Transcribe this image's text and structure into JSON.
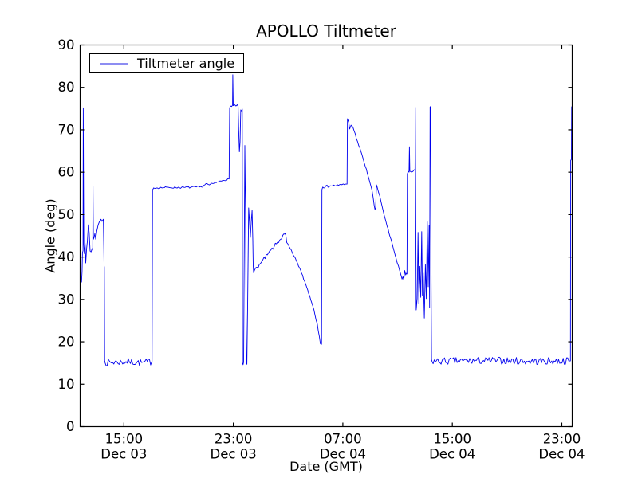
{
  "figure": {
    "background": "#ffffff",
    "axes_color": "#000000"
  },
  "chart_data": {
    "type": "line",
    "title": "APOLLO Tiltmeter",
    "xlabel": "Date (GMT)",
    "ylabel": "Angle (deg)",
    "ylim": [
      0,
      90
    ],
    "xlim_hours": [
      0,
      36
    ],
    "grid": false,
    "tick_direction": "in",
    "yticks": [
      0,
      10,
      20,
      30,
      40,
      50,
      60,
      70,
      80,
      90
    ],
    "xticks": [
      {
        "t": 3.2,
        "time": "15:00",
        "date": "Dec 03"
      },
      {
        "t": 11.21,
        "time": "23:00",
        "date": "Dec 03"
      },
      {
        "t": 19.22,
        "time": "07:00",
        "date": "Dec 04"
      },
      {
        "t": 27.23,
        "time": "15:00",
        "date": "Dec 04"
      },
      {
        "t": 35.24,
        "time": "23:00",
        "date": "Dec 04"
      }
    ],
    "legend": {
      "position": "upper left",
      "entries": [
        {
          "label": "Tiltmeter angle",
          "color": "#0000ee",
          "sample_color": "#8d8df2"
        }
      ]
    },
    "series": [
      {
        "name": "Tiltmeter angle",
        "color": "#0000ee",
        "line_width": 0.9,
        "points_per_hour": 12,
        "segments": [
          {
            "amp": 0.3,
            "pts": [
              [
                0.1,
                34.0
              ],
              [
                0.14,
                36.5
              ],
              [
                0.17,
                41.0
              ],
              [
                0.21,
                41.5
              ],
              [
                0.23,
                75.2
              ],
              [
                0.25,
                55.0
              ],
              [
                0.27,
                43.0
              ],
              [
                0.31,
                40.8
              ],
              [
                0.36,
                43.2
              ],
              [
                0.41,
                38.6
              ],
              [
                0.47,
                42.0
              ],
              [
                0.53,
                43.8
              ],
              [
                0.6,
                47.6
              ],
              [
                0.66,
                45.8
              ],
              [
                0.73,
                41.4
              ],
              [
                0.8,
                41.2
              ],
              [
                0.88,
                42.0
              ],
              [
                0.92,
                41.8
              ],
              [
                0.94,
                56.8
              ],
              [
                0.97,
                44.2
              ],
              [
                1.02,
                44.6
              ],
              [
                1.08,
                45.6
              ],
              [
                1.14,
                44.2
              ],
              [
                1.22,
                46.1
              ],
              [
                1.32,
                47.6
              ],
              [
                1.42,
                48.4
              ],
              [
                1.52,
                48.9
              ],
              [
                1.6,
                48.4
              ],
              [
                1.7,
                48.9
              ],
              [
                1.73,
                42.0
              ],
              [
                1.75,
                38.0
              ],
              [
                1.77,
                37.6
              ],
              [
                1.79,
                15.6
              ]
            ]
          },
          {
            "amp": 0.8,
            "pts": [
              [
                1.82,
                15.1
              ],
              [
                2.7,
                15.2
              ],
              [
                3.6,
                15.3
              ],
              [
                4.5,
                15.1
              ],
              [
                5.24,
                15.3
              ]
            ]
          },
          {
            "amp": 0.22,
            "pts": [
              [
                5.26,
                15.4
              ],
              [
                5.3,
                55.8
              ],
              [
                5.38,
                56.3
              ],
              [
                6.5,
                56.4
              ],
              [
                7.6,
                56.4
              ],
              [
                8.9,
                56.5
              ],
              [
                9.2,
                57.3
              ],
              [
                9.45,
                57.0
              ],
              [
                9.8,
                57.4
              ],
              [
                10.1,
                57.7
              ],
              [
                10.45,
                58.1
              ],
              [
                10.9,
                58.4
              ]
            ]
          },
          {
            "amp": 0.15,
            "pts": [
              [
                10.94,
                75.2
              ],
              [
                11.0,
                75.6
              ],
              [
                11.08,
                75.5
              ],
              [
                11.15,
                75.8
              ],
              [
                11.17,
                83.0
              ],
              [
                11.2,
                75.7
              ],
              [
                11.3,
                75.9
              ],
              [
                11.4,
                75.6
              ],
              [
                11.5,
                75.9
              ],
              [
                11.56,
                75.5
              ],
              [
                11.6,
                70.0
              ],
              [
                11.65,
                64.8
              ],
              [
                11.7,
                67.0
              ],
              [
                11.75,
                74.7
              ],
              [
                11.82,
                74.4
              ],
              [
                11.86,
                74.9
              ],
              [
                11.88,
                15.0
              ],
              [
                11.92,
                14.6
              ],
              [
                11.96,
                15.2
              ],
              [
                12.05,
                66.3
              ],
              [
                12.1,
                50.0
              ],
              [
                12.16,
                15.0
              ],
              [
                12.2,
                14.7
              ],
              [
                12.26,
                30.0
              ],
              [
                12.33,
                51.6
              ],
              [
                12.4,
                48.0
              ],
              [
                12.45,
                44.6
              ],
              [
                12.52,
                48.5
              ],
              [
                12.58,
                51.0
              ],
              [
                12.63,
                44.0
              ],
              [
                12.66,
                38.0
              ],
              [
                12.69,
                36.3
              ]
            ]
          },
          {
            "amp": 0.45,
            "pts": [
              [
                12.75,
                36.8
              ],
              [
                13.2,
                38.5
              ],
              [
                13.7,
                40.5
              ],
              [
                14.2,
                42.5
              ],
              [
                14.6,
                44.0
              ],
              [
                14.98,
                45.4
              ]
            ]
          },
          {
            "amp": 0.25,
            "pts": [
              [
                15.02,
                45.6
              ],
              [
                15.06,
                44.9
              ],
              [
                15.12,
                43.4
              ],
              [
                15.3,
                42.4
              ],
              [
                15.6,
                40.4
              ],
              [
                15.9,
                38.6
              ],
              [
                16.2,
                36.2
              ],
              [
                16.5,
                33.6
              ],
              [
                16.8,
                30.8
              ],
              [
                17.1,
                27.6
              ],
              [
                17.35,
                24.2
              ],
              [
                17.5,
                21.3
              ],
              [
                17.58,
                19.5
              ],
              [
                17.63,
                19.7
              ],
              [
                17.66,
                19.4
              ]
            ]
          },
          {
            "amp": 0.28,
            "pts": [
              [
                17.69,
                55.9
              ],
              [
                17.75,
                56.5
              ],
              [
                18.3,
                56.8
              ],
              [
                18.9,
                56.9
              ],
              [
                19.5,
                57.2
              ]
            ]
          },
          {
            "amp": 0.22,
            "pts": [
              [
                19.53,
                57.2
              ],
              [
                19.56,
                72.6
              ],
              [
                19.65,
                71.8
              ],
              [
                19.72,
                70.2
              ],
              [
                19.82,
                71.1
              ],
              [
                19.95,
                70.7
              ],
              [
                20.3,
                67.2
              ],
              [
                20.7,
                63.2
              ],
              [
                21.1,
                58.8
              ],
              [
                21.35,
                55.8
              ],
              [
                21.52,
                52.0
              ],
              [
                21.57,
                51.2
              ],
              [
                21.62,
                51.6
              ],
              [
                21.68,
                57.0
              ],
              [
                21.74,
                56.4
              ],
              [
                22.0,
                53.2
              ],
              [
                22.3,
                49.2
              ],
              [
                22.6,
                45.6
              ],
              [
                22.9,
                42.2
              ],
              [
                23.2,
                38.6
              ],
              [
                23.45,
                36.0
              ],
              [
                23.55,
                34.8
              ],
              [
                23.62,
                35.4
              ],
              [
                23.68,
                34.6
              ],
              [
                23.75,
                36.8
              ],
              [
                23.82,
                35.8
              ],
              [
                23.88,
                36.2
              ]
            ]
          },
          {
            "amp": 0.2,
            "pts": [
              [
                23.91,
                36.0
              ],
              [
                23.94,
                59.6
              ],
              [
                24.0,
                60.2
              ],
              [
                24.06,
                60.0
              ],
              [
                24.09,
                66.0
              ],
              [
                24.12,
                60.2
              ],
              [
                24.25,
                60.0
              ],
              [
                24.35,
                60.2
              ],
              [
                24.44,
                60.6
              ],
              [
                24.5,
                60.4
              ],
              [
                24.52,
                75.3
              ],
              [
                24.56,
                48.0
              ],
              [
                24.59,
                27.5
              ],
              [
                24.66,
                30.2
              ],
              [
                24.72,
                45.8
              ],
              [
                24.78,
                29.0
              ],
              [
                24.85,
                37.8
              ],
              [
                24.92,
                30.5
              ],
              [
                24.99,
                46.0
              ],
              [
                25.04,
                31.0
              ],
              [
                25.1,
                36.2
              ],
              [
                25.18,
                25.6
              ],
              [
                25.26,
                38.2
              ],
              [
                25.33,
                30.2
              ],
              [
                25.4,
                48.3
              ],
              [
                25.47,
                33.0
              ],
              [
                25.53,
                47.4
              ],
              [
                25.57,
                28.0
              ],
              [
                25.6,
                75.4
              ],
              [
                25.64,
                75.5
              ],
              [
                25.68,
                34.0
              ],
              [
                25.71,
                15.8
              ]
            ]
          },
          {
            "amp": 0.85,
            "pts": [
              [
                25.74,
                15.4
              ],
              [
                28.0,
                15.5
              ],
              [
                30.5,
                15.6
              ],
              [
                33.0,
                15.4
              ],
              [
                35.84,
                15.5
              ]
            ]
          },
          {
            "amp": 0,
            "pts": [
              [
                35.87,
                15.5
              ],
              [
                35.89,
                62.8
              ],
              [
                35.94,
                63.0
              ],
              [
                35.96,
                75.4
              ],
              [
                35.985,
                75.5
              ]
            ]
          }
        ]
      }
    ]
  }
}
